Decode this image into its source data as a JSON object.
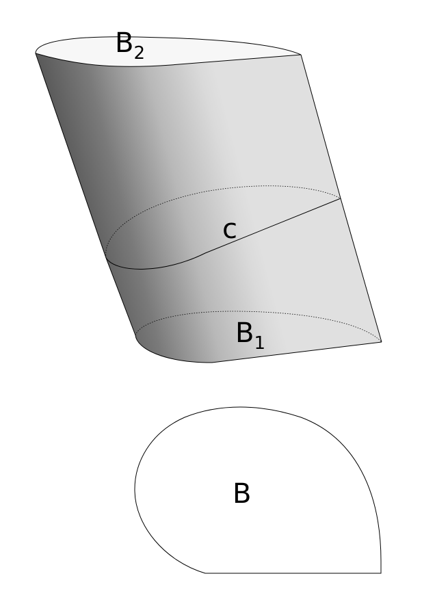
{
  "figure": {
    "labels": {
      "top_face": {
        "main": "B",
        "sub": "2"
      },
      "cross_section": {
        "main": "c"
      },
      "bottom_face": {
        "main": "B",
        "sub": "1"
      },
      "base_shape": {
        "main": "B"
      }
    },
    "colors": {
      "stroke": "#000000",
      "face_light": "#e0e0e0",
      "face_shadow": "#4a4a4a",
      "top_cap": "#f7f7f7",
      "background": "#ffffff"
    }
  }
}
